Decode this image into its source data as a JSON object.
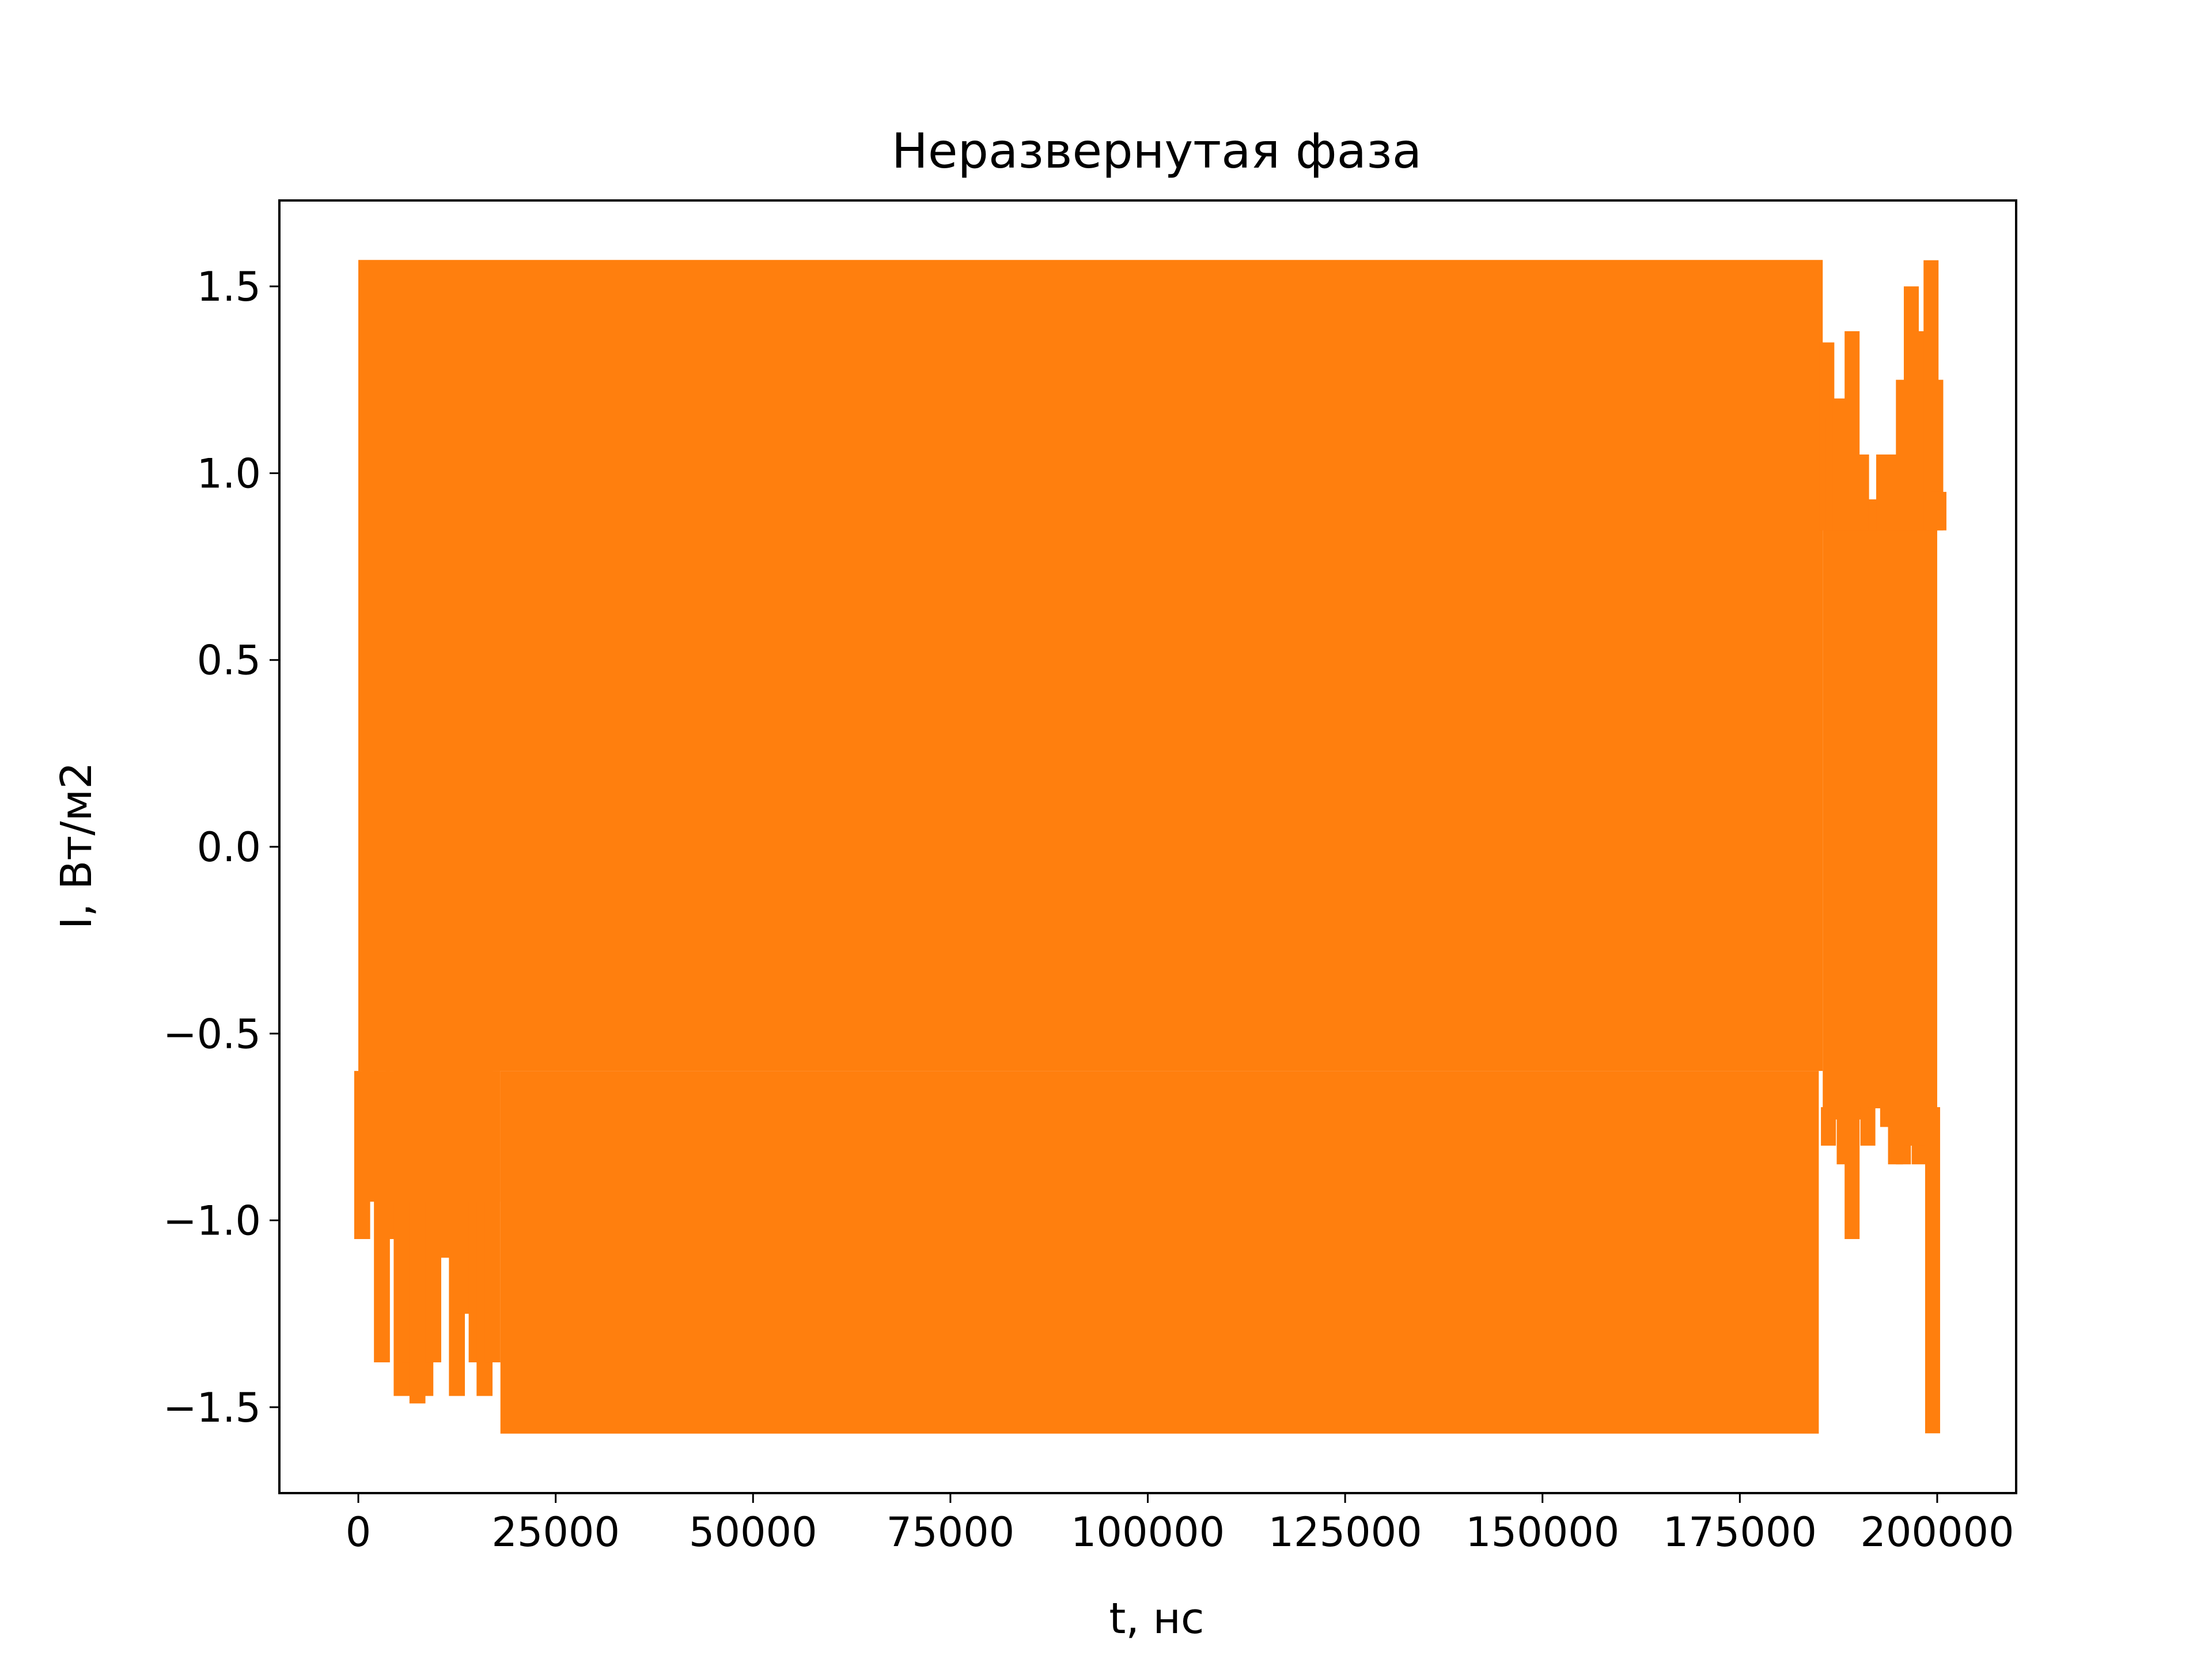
{
  "colors": {
    "series": "#ff7f0e",
    "axes": "#000000",
    "background": "#ffffff"
  },
  "chart_data": {
    "type": "line",
    "title": "Неразвернутая фаза",
    "xlabel": "t, нс",
    "ylabel": "I, Вт/м2",
    "xlim": [
      -10000,
      210000
    ],
    "ylim": [
      -1.73,
      1.73
    ],
    "grid": false,
    "x_ticks": [
      0,
      25000,
      50000,
      75000,
      100000,
      125000,
      150000,
      175000,
      200000
    ],
    "x_tick_labels": [
      "0",
      "25000",
      "50000",
      "75000",
      "100000",
      "125000",
      "150000",
      "175000",
      "200000"
    ],
    "y_ticks": [
      -1.5,
      -1.0,
      -0.5,
      0.0,
      0.5,
      1.0,
      1.5
    ],
    "y_tick_labels": [
      "−1.5",
      "−1.0",
      "−0.5",
      "0.0",
      "0.5",
      "1.0",
      "1.5"
    ],
    "series": [
      {
        "x_range": [
          0,
          200000
        ],
        "band": {
          "x": [
            0,
            18000,
            185000,
            200000
          ],
          "ymax": 1.5708,
          "ymin": -1.5708
        },
        "upper_gaps": [
          {
            "x": 185800,
            "y": 1.35
          },
          {
            "x": 186600,
            "y": 1.15
          },
          {
            "x": 187500,
            "y": 1.2
          },
          {
            "x": 189000,
            "y": 1.38
          },
          {
            "x": 190200,
            "y": 1.05
          },
          {
            "x": 191000,
            "y": 0.85
          },
          {
            "x": 192000,
            "y": 0.93
          },
          {
            "x": 193000,
            "y": 1.05
          },
          {
            "x": 194500,
            "y": 1.05
          },
          {
            "x": 195500,
            "y": 1.25
          },
          {
            "x": 196500,
            "y": 1.5
          },
          {
            "x": 197500,
            "y": 1.38
          },
          {
            "x": 198500,
            "y": 1.38
          },
          {
            "x": 199000,
            "y": 1.57
          },
          {
            "x": 199600,
            "y": 1.25
          },
          {
            "x": 200000,
            "y": 0.95
          }
        ],
        "lower_gaps": [
          {
            "x": 500,
            "y": -1.05
          },
          {
            "x": 1500,
            "y": -0.73
          },
          {
            "x": 3000,
            "y": -1.38
          },
          {
            "x": 4500,
            "y": -1.05
          },
          {
            "x": 5500,
            "y": -1.47
          },
          {
            "x": 6500,
            "y": -1.38
          },
          {
            "x": 7500,
            "y": -1.49
          },
          {
            "x": 8500,
            "y": -1.47
          },
          {
            "x": 9500,
            "y": -1.38
          },
          {
            "x": 10500,
            "y": -1.1
          },
          {
            "x": 11500,
            "y": -0.82
          },
          {
            "x": 12500,
            "y": -1.47
          },
          {
            "x": 13500,
            "y": -1.25
          },
          {
            "x": 14000,
            "y": -0.65
          },
          {
            "x": 15000,
            "y": -1.38
          },
          {
            "x": 16000,
            "y": -1.47
          },
          {
            "x": 17000,
            "y": -1.38
          },
          {
            "x": 186000,
            "y": -0.8
          },
          {
            "x": 187000,
            "y": -0.73
          },
          {
            "x": 188000,
            "y": -0.85
          },
          {
            "x": 189000,
            "y": -1.05
          },
          {
            "x": 190000,
            "y": -0.73
          },
          {
            "x": 191000,
            "y": -0.8
          },
          {
            "x": 192000,
            "y": -0.7
          },
          {
            "x": 193500,
            "y": -0.75
          },
          {
            "x": 194500,
            "y": -0.85
          },
          {
            "x": 195500,
            "y": -0.85
          },
          {
            "x": 196500,
            "y": -0.8
          },
          {
            "x": 197500,
            "y": -0.85
          },
          {
            "x": 198500,
            "y": -0.8
          },
          {
            "x": 199200,
            "y": -1.57
          },
          {
            "x": 200000,
            "y": -0.6
          }
        ]
      }
    ]
  }
}
